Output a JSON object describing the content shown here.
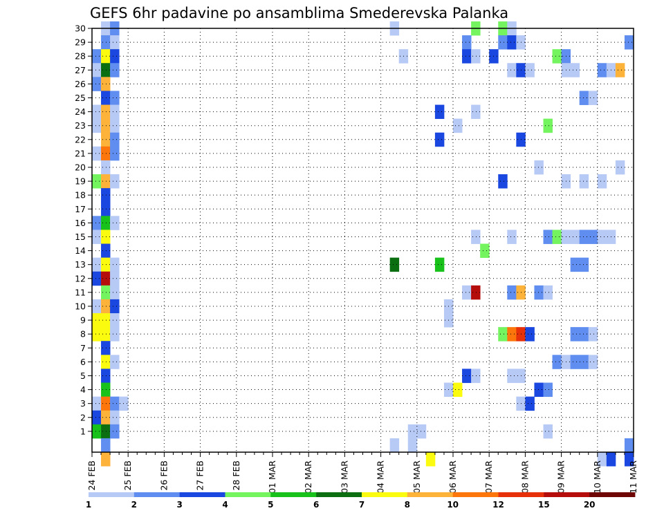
{
  "chart_data": {
    "type": "heatmap",
    "title": "GEFS 6hr padavine po ansamblima Smederevska Palanka",
    "xlabel": "",
    "ylabel": "",
    "y_ticks": [
      "1",
      "2",
      "3",
      "4",
      "5",
      "6",
      "7",
      "8",
      "9",
      "10",
      "11",
      "12",
      "13",
      "14",
      "15",
      "16",
      "17",
      "18",
      "19",
      "20",
      "21",
      "22",
      "23",
      "24",
      "25",
      "26",
      "27",
      "28",
      "29",
      "30"
    ],
    "x_ticks": [
      "24 FEB",
      "25 FEB",
      "26 FEB",
      "27 FEB",
      "28 FEB",
      "01 MAR",
      "02 MAR",
      "03 MAR",
      "04 MAR",
      "05 MAR",
      "06 MAR",
      "07 MAR",
      "08 MAR",
      "09 MAR",
      "10 MAR",
      "11 MAR"
    ],
    "time_steps_per_day": 4,
    "y_range": [
      0,
      30
    ],
    "x_range_steps": [
      0,
      60
    ],
    "legend": {
      "labels": [
        "1",
        "2",
        "3",
        "4",
        "5",
        "6",
        "7",
        "8",
        "10",
        "12",
        "15",
        "20"
      ],
      "colors": [
        "#b7c9f5",
        "#5f8ef0",
        "#1a47e0",
        "#74f45f",
        "#18c21b",
        "#0b6f12",
        "#fbfb0f",
        "#fdb23a",
        "#fc760b",
        "#e6310b",
        "#b50c0c",
        "#6e0606"
      ]
    },
    "cells": [
      [
        1,
        30,
        0
      ],
      [
        2,
        30,
        1
      ],
      [
        33,
        30,
        0
      ],
      [
        42,
        30,
        3
      ],
      [
        45,
        30,
        3
      ],
      [
        46,
        30,
        0
      ],
      [
        1,
        29,
        1
      ],
      [
        2,
        29,
        0
      ],
      [
        41,
        29,
        1
      ],
      [
        45,
        29,
        1
      ],
      [
        46,
        29,
        2
      ],
      [
        47,
        29,
        0
      ],
      [
        59,
        29,
        1
      ],
      [
        0,
        28,
        1
      ],
      [
        1,
        28,
        6
      ],
      [
        2,
        28,
        2
      ],
      [
        34,
        28,
        0
      ],
      [
        41,
        28,
        2
      ],
      [
        42,
        28,
        0
      ],
      [
        44,
        28,
        2
      ],
      [
        51,
        28,
        3
      ],
      [
        52,
        28,
        1
      ],
      [
        0,
        27,
        0
      ],
      [
        1,
        27,
        5
      ],
      [
        2,
        27,
        1
      ],
      [
        46,
        27,
        0
      ],
      [
        47,
        27,
        2
      ],
      [
        48,
        27,
        0
      ],
      [
        52,
        27,
        0
      ],
      [
        53,
        27,
        0
      ],
      [
        56,
        27,
        1
      ],
      [
        57,
        27,
        0
      ],
      [
        58,
        27,
        7
      ],
      [
        0,
        26,
        1
      ],
      [
        1,
        26,
        7
      ],
      [
        1,
        25,
        2
      ],
      [
        2,
        25,
        1
      ],
      [
        54,
        25,
        1
      ],
      [
        55,
        25,
        0
      ],
      [
        0,
        24,
        0
      ],
      [
        1,
        24,
        7
      ],
      [
        2,
        24,
        0
      ],
      [
        38,
        24,
        2
      ],
      [
        42,
        24,
        0
      ],
      [
        0,
        23,
        0
      ],
      [
        1,
        23,
        7
      ],
      [
        2,
        23,
        0
      ],
      [
        40,
        23,
        0
      ],
      [
        50,
        23,
        3
      ],
      [
        1,
        22,
        7
      ],
      [
        2,
        22,
        1
      ],
      [
        38,
        22,
        2
      ],
      [
        47,
        22,
        2
      ],
      [
        0,
        21,
        0
      ],
      [
        1,
        21,
        8
      ],
      [
        2,
        21,
        1
      ],
      [
        1,
        20,
        0
      ],
      [
        49,
        20,
        0
      ],
      [
        58,
        20,
        0
      ],
      [
        0,
        19,
        3
      ],
      [
        1,
        19,
        7
      ],
      [
        2,
        19,
        0
      ],
      [
        45,
        19,
        2
      ],
      [
        52,
        19,
        0
      ],
      [
        54,
        19,
        0
      ],
      [
        56,
        19,
        0
      ],
      [
        1,
        18,
        2
      ],
      [
        1,
        17,
        2
      ],
      [
        0,
        16,
        1
      ],
      [
        1,
        16,
        4
      ],
      [
        2,
        16,
        0
      ],
      [
        0,
        15,
        0
      ],
      [
        1,
        15,
        6
      ],
      [
        42,
        15,
        0
      ],
      [
        46,
        15,
        0
      ],
      [
        50,
        15,
        1
      ],
      [
        51,
        15,
        3
      ],
      [
        52,
        15,
        0
      ],
      [
        53,
        15,
        0
      ],
      [
        54,
        15,
        1
      ],
      [
        55,
        15,
        1
      ],
      [
        56,
        15,
        0
      ],
      [
        57,
        15,
        0
      ],
      [
        1,
        14,
        2
      ],
      [
        43,
        14,
        3
      ],
      [
        0,
        13,
        0
      ],
      [
        1,
        13,
        6
      ],
      [
        2,
        13,
        0
      ],
      [
        33,
        13,
        5
      ],
      [
        38,
        13,
        4
      ],
      [
        53,
        13,
        1
      ],
      [
        54,
        13,
        1
      ],
      [
        0,
        12,
        2
      ],
      [
        1,
        12,
        10
      ],
      [
        2,
        12,
        0
      ],
      [
        1,
        11,
        3
      ],
      [
        2,
        11,
        0
      ],
      [
        41,
        11,
        0
      ],
      [
        42,
        11,
        10
      ],
      [
        46,
        11,
        1
      ],
      [
        47,
        11,
        7
      ],
      [
        49,
        11,
        1
      ],
      [
        50,
        11,
        0
      ],
      [
        0,
        10,
        0
      ],
      [
        1,
        10,
        7
      ],
      [
        2,
        10,
        2
      ],
      [
        39,
        10,
        0
      ],
      [
        0,
        9,
        6
      ],
      [
        1,
        9,
        6
      ],
      [
        2,
        9,
        0
      ],
      [
        39,
        9,
        0
      ],
      [
        0,
        8,
        6
      ],
      [
        1,
        8,
        6
      ],
      [
        2,
        8,
        0
      ],
      [
        45,
        8,
        3
      ],
      [
        46,
        8,
        8
      ],
      [
        47,
        8,
        9
      ],
      [
        48,
        8,
        2
      ],
      [
        53,
        8,
        1
      ],
      [
        54,
        8,
        1
      ],
      [
        55,
        8,
        0
      ],
      [
        1,
        7,
        2
      ],
      [
        1,
        6,
        6
      ],
      [
        2,
        6,
        0
      ],
      [
        51,
        6,
        1
      ],
      [
        52,
        6,
        0
      ],
      [
        53,
        6,
        1
      ],
      [
        54,
        6,
        1
      ],
      [
        55,
        6,
        0
      ],
      [
        1,
        5,
        2
      ],
      [
        41,
        5,
        2
      ],
      [
        42,
        5,
        0
      ],
      [
        46,
        5,
        0
      ],
      [
        47,
        5,
        0
      ],
      [
        1,
        4,
        4
      ],
      [
        39,
        4,
        0
      ],
      [
        40,
        4,
        6
      ],
      [
        49,
        4,
        2
      ],
      [
        50,
        4,
        1
      ],
      [
        0,
        3,
        0
      ],
      [
        1,
        3,
        8
      ],
      [
        2,
        3,
        1
      ],
      [
        3,
        3,
        0
      ],
      [
        47,
        3,
        0
      ],
      [
        48,
        3,
        2
      ],
      [
        0,
        2,
        2
      ],
      [
        1,
        2,
        7
      ],
      [
        2,
        2,
        0
      ],
      [
        0,
        1,
        4
      ],
      [
        1,
        1,
        5
      ],
      [
        2,
        1,
        1
      ],
      [
        35,
        1,
        0
      ],
      [
        36,
        1,
        0
      ],
      [
        50,
        1,
        0
      ],
      [
        1,
        0,
        1
      ],
      [
        33,
        0,
        0
      ],
      [
        35,
        0,
        0
      ],
      [
        59,
        0,
        1
      ],
      [
        1,
        -1,
        7
      ],
      [
        37,
        -1,
        6
      ],
      [
        56,
        -1,
        0
      ],
      [
        57,
        -1,
        2
      ],
      [
        59,
        -1,
        2
      ]
    ]
  }
}
